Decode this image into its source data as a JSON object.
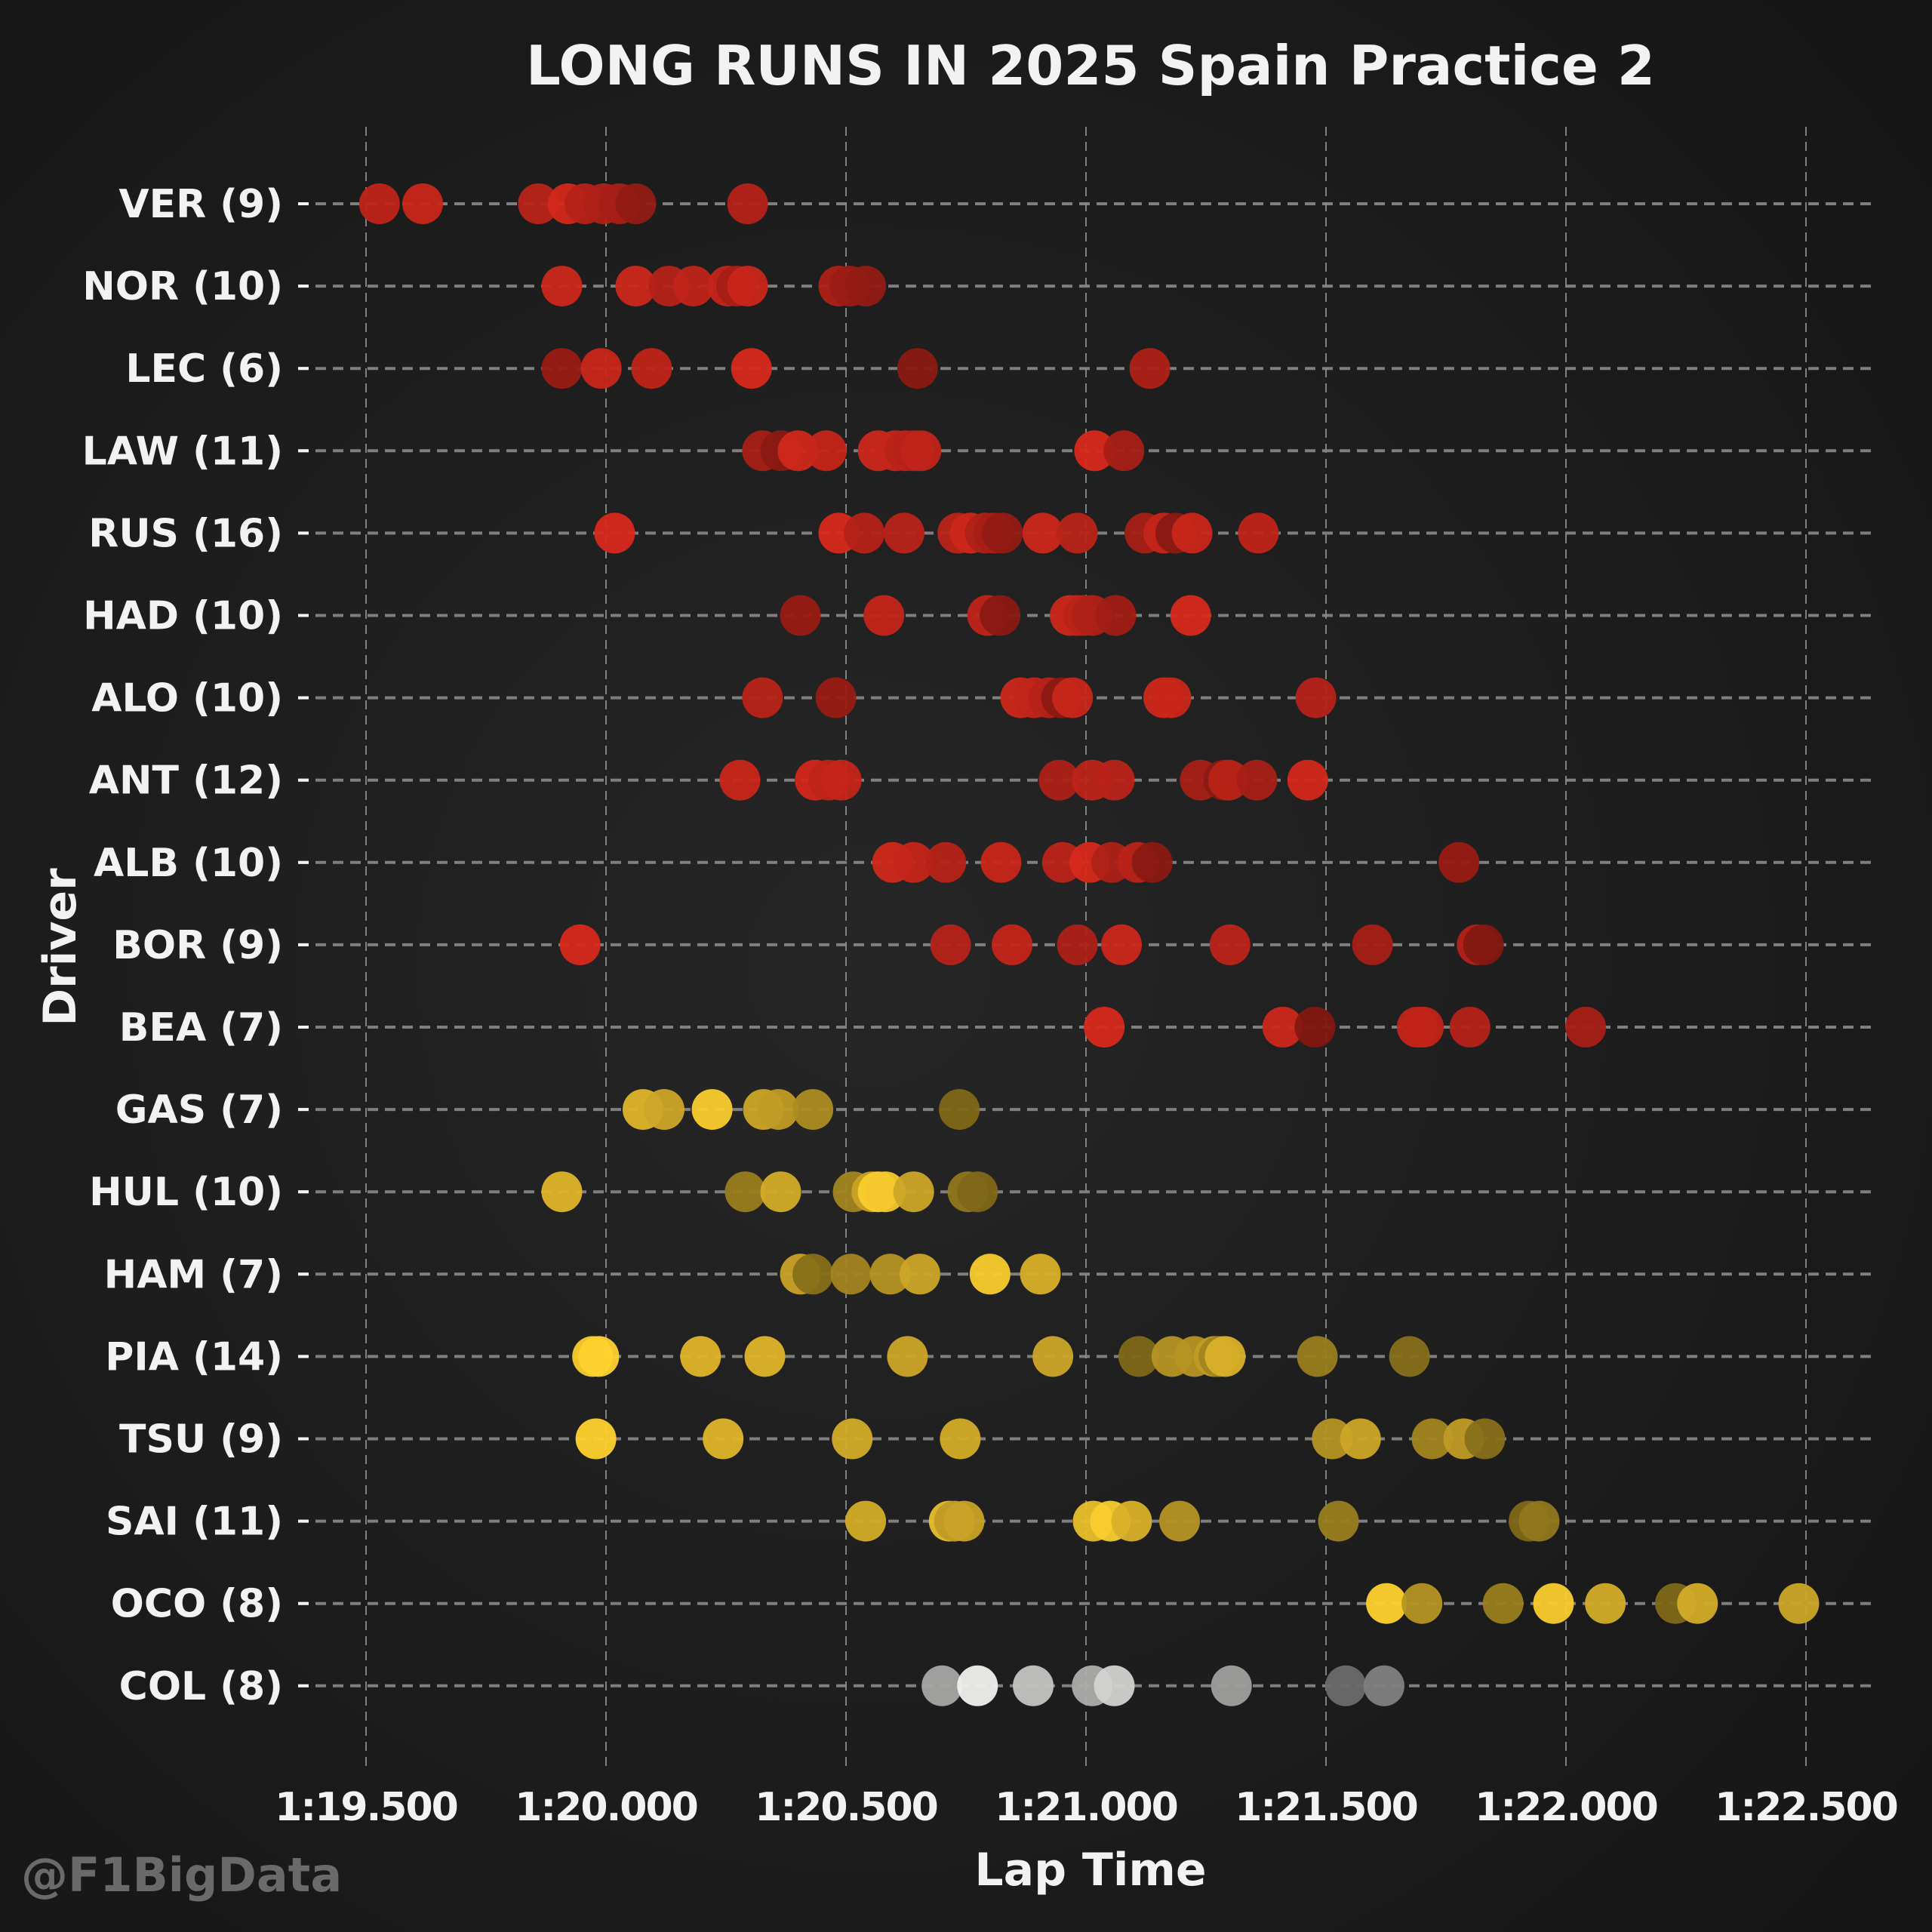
{
  "chart_data": {
    "type": "scatter",
    "title": "LONG RUNS IN 2025 Spain Practice 2",
    "xlabel": "Lap Time",
    "ylabel": "Driver",
    "watermark": "@F1BigData",
    "xlim": [
      79.5,
      82.5
    ],
    "x_ticks": [
      79.5,
      80.0,
      80.5,
      81.0,
      81.5,
      82.0,
      82.5
    ],
    "x_tick_labels": [
      "1:19.500",
      "1:20.000",
      "1:20.500",
      "1:21.000",
      "1:21.500",
      "1:22.000",
      "1:22.500"
    ],
    "grid": true,
    "x_units": "seconds",
    "colors": {
      "background": "#1e1e1e",
      "red_bright": "#dc2a1c",
      "red_mid": "#b52218",
      "red_dark": "#6e140e",
      "yellow_bright": "#ffd22e",
      "yellow_mid": "#c9a227",
      "yellow_dark": "#6b5a14",
      "grey_light": "#f0f0ee",
      "grey_dark": "#5c5c5c"
    },
    "series": [
      {
        "driver": "VER",
        "label": "VER (9)",
        "laps": 9,
        "palette": "red",
        "x": [
          79.528,
          79.618,
          79.859,
          79.921,
          79.956,
          79.995,
          80.028,
          80.062,
          80.295
        ],
        "shade": [
          0.35,
          0.25,
          0.45,
          0.1,
          0.5,
          0.55,
          0.6,
          0.75,
          0.5
        ]
      },
      {
        "driver": "NOR",
        "label": "NOR (10)",
        "laps": 10,
        "palette": "red",
        "x": [
          79.908,
          80.062,
          80.131,
          80.182,
          80.254,
          80.272,
          80.295,
          80.485,
          80.508,
          80.541
        ],
        "shade": [
          0.2,
          0.2,
          0.5,
          0.35,
          0.3,
          0.6,
          0.25,
          0.55,
          0.7,
          0.75
        ]
      },
      {
        "driver": "LEC",
        "label": "LEC (6)",
        "laps": 6,
        "palette": "red",
        "x": [
          79.908,
          79.99,
          80.095,
          80.303,
          80.649,
          81.133
        ],
        "shade": [
          0.7,
          0.25,
          0.35,
          0.05,
          0.8,
          0.55
        ]
      },
      {
        "driver": "LAW",
        "label": "LAW (11)",
        "laps": 11,
        "palette": "red",
        "x": [
          80.326,
          80.364,
          80.4,
          80.459,
          80.567,
          80.603,
          80.623,
          80.641,
          80.656,
          81.018,
          81.079
        ],
        "shade": [
          0.6,
          0.8,
          0.15,
          0.3,
          0.2,
          0.3,
          0.45,
          0.5,
          0.35,
          0.05,
          0.6
        ]
      },
      {
        "driver": "RUS",
        "label": "RUS (16)",
        "laps": 16,
        "palette": "red",
        "x": [
          80.018,
          80.485,
          80.538,
          80.621,
          80.733,
          80.759,
          80.79,
          80.808,
          80.826,
          80.91,
          80.982,
          81.123,
          81.162,
          81.187,
          81.221,
          81.359
        ],
        "shade": [
          0.05,
          0.05,
          0.5,
          0.45,
          0.4,
          0.2,
          0.55,
          0.6,
          0.75,
          0.2,
          0.45,
          0.6,
          0.3,
          0.8,
          0.25,
          0.35
        ]
      },
      {
        "driver": "HAD",
        "label": "HAD (10)",
        "laps": 10,
        "palette": "red",
        "x": [
          80.405,
          80.579,
          80.795,
          80.821,
          80.967,
          80.982,
          80.995,
          81.013,
          81.062,
          81.218
        ],
        "shade": [
          0.7,
          0.3,
          0.35,
          0.8,
          0.2,
          0.3,
          0.45,
          0.55,
          0.65,
          0.05
        ]
      },
      {
        "driver": "ALO",
        "label": "ALO (10)",
        "laps": 10,
        "palette": "red",
        "x": [
          80.326,
          80.479,
          80.864,
          80.892,
          80.923,
          80.949,
          80.972,
          81.162,
          81.177,
          81.479
        ],
        "shade": [
          0.45,
          0.7,
          0.2,
          0.35,
          0.5,
          0.8,
          0.25,
          0.15,
          0.25,
          0.5
        ]
      },
      {
        "driver": "ANT",
        "label": "ANT (12)",
        "laps": 12,
        "palette": "red",
        "x": [
          80.279,
          80.436,
          80.464,
          80.49,
          80.944,
          81.013,
          81.059,
          81.238,
          81.287,
          81.297,
          81.356,
          81.462
        ],
        "shade": [
          0.25,
          0.1,
          0.4,
          0.3,
          0.55,
          0.4,
          0.45,
          0.6,
          0.8,
          0.45,
          0.6,
          0.1
        ]
      },
      {
        "driver": "ALB",
        "label": "ALB (10)",
        "laps": 10,
        "palette": "red",
        "x": [
          80.597,
          80.641,
          80.708,
          80.823,
          80.951,
          81.008,
          81.054,
          81.108,
          81.138,
          81.777
        ],
        "shade": [
          0.15,
          0.3,
          0.5,
          0.25,
          0.4,
          0.05,
          0.55,
          0.45,
          0.8,
          0.7
        ]
      },
      {
        "driver": "BOR",
        "label": "BOR (9)",
        "laps": 9,
        "palette": "red",
        "x": [
          79.946,
          80.718,
          80.846,
          80.982,
          81.074,
          81.3,
          81.597,
          81.815,
          81.828
        ],
        "shade": [
          0.05,
          0.5,
          0.3,
          0.55,
          0.2,
          0.4,
          0.6,
          0.5,
          0.85
        ]
      },
      {
        "driver": "BEA",
        "label": "BEA (7)",
        "laps": 7,
        "palette": "red",
        "x": [
          81.038,
          81.41,
          81.477,
          81.69,
          81.703,
          81.8,
          82.041
        ],
        "shade": [
          0.05,
          0.2,
          0.85,
          0.3,
          0.35,
          0.5,
          0.6
        ]
      },
      {
        "driver": "GAS",
        "label": "GAS (7)",
        "laps": 7,
        "palette": "yellow",
        "x": [
          80.077,
          80.121,
          80.221,
          80.328,
          80.359,
          80.431,
          80.736
        ],
        "shade": [
          0.3,
          0.45,
          0.05,
          0.45,
          0.55,
          0.65,
          0.9
        ]
      },
      {
        "driver": "HUL",
        "label": "HUL (10)",
        "laps": 10,
        "palette": "yellow",
        "x": [
          79.908,
          80.29,
          80.364,
          80.515,
          80.554,
          80.567,
          80.582,
          80.641,
          80.754,
          80.774
        ],
        "shade": [
          0.3,
          0.75,
          0.4,
          0.7,
          0.5,
          0.05,
          0.1,
          0.45,
          0.8,
          0.9
        ]
      },
      {
        "driver": "HAM",
        "label": "HAM (7)",
        "laps": 7,
        "palette": "yellow",
        "x": [
          80.405,
          80.431,
          80.51,
          80.592,
          80.654,
          80.8,
          80.905
        ],
        "shade": [
          0.5,
          0.85,
          0.7,
          0.6,
          0.45,
          0.05,
          0.35
        ]
      },
      {
        "driver": "PIA",
        "label": "PIA (14)",
        "laps": 14,
        "palette": "yellow",
        "x": [
          79.972,
          79.985,
          80.197,
          80.331,
          80.628,
          80.931,
          81.11,
          81.179,
          81.226,
          81.267,
          81.277,
          81.29,
          81.482,
          81.674
        ],
        "shade": [
          0.05,
          0.0,
          0.3,
          0.3,
          0.45,
          0.45,
          0.9,
          0.6,
          0.6,
          0.55,
          0.7,
          0.35,
          0.75,
          0.85
        ]
      },
      {
        "driver": "TSU",
        "label": "TSU (9)",
        "laps": 9,
        "palette": "yellow",
        "x": [
          79.979,
          80.244,
          80.513,
          80.738,
          81.513,
          81.572,
          81.721,
          81.787,
          81.831
        ],
        "shade": [
          0.0,
          0.3,
          0.4,
          0.4,
          0.6,
          0.45,
          0.7,
          0.55,
          0.85
        ]
      },
      {
        "driver": "SAI",
        "label": "SAI (11)",
        "laps": 11,
        "palette": "yellow",
        "x": [
          80.541,
          80.715,
          80.726,
          80.746,
          81.015,
          81.051,
          81.095,
          81.195,
          81.526,
          81.923,
          81.944
        ],
        "shade": [
          0.4,
          0.2,
          0.55,
          0.5,
          0.2,
          0.05,
          0.35,
          0.6,
          0.75,
          0.9,
          0.8
        ]
      },
      {
        "driver": "OCO",
        "label": "OCO (8)",
        "laps": 8,
        "palette": "yellow",
        "x": [
          81.626,
          81.7,
          81.869,
          81.974,
          82.082,
          82.228,
          82.274,
          82.485
        ],
        "shade": [
          0.0,
          0.6,
          0.75,
          0.05,
          0.4,
          0.9,
          0.4,
          0.45
        ]
      },
      {
        "driver": "COL",
        "label": "COL (8)",
        "laps": 8,
        "palette": "grey",
        "x": [
          80.7,
          80.774,
          80.89,
          81.013,
          81.059,
          81.303,
          81.541,
          81.621
        ],
        "shade": [
          0.5,
          0.0,
          0.3,
          0.45,
          0.2,
          0.55,
          0.9,
          0.75
        ]
      }
    ]
  }
}
